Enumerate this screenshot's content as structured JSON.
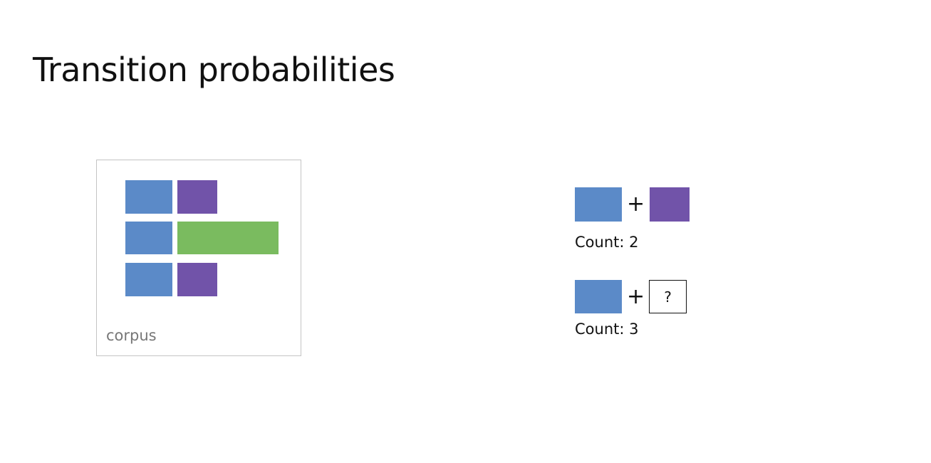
{
  "title": "Transition probabilities",
  "colors": {
    "blue": "#5b8ac8",
    "purple": "#7153a9",
    "green": "#7abb5f"
  },
  "corpus": {
    "label": "corpus",
    "rows": [
      [
        "blue",
        "purple"
      ],
      [
        "blue",
        "green"
      ],
      [
        "blue",
        "purple"
      ]
    ]
  },
  "transitions": [
    {
      "from": "blue",
      "to": "purple",
      "count_label": "Count: 2"
    },
    {
      "from": "blue",
      "to": "?",
      "count_label": "Count: 3"
    }
  ],
  "plus_symbol": "+"
}
